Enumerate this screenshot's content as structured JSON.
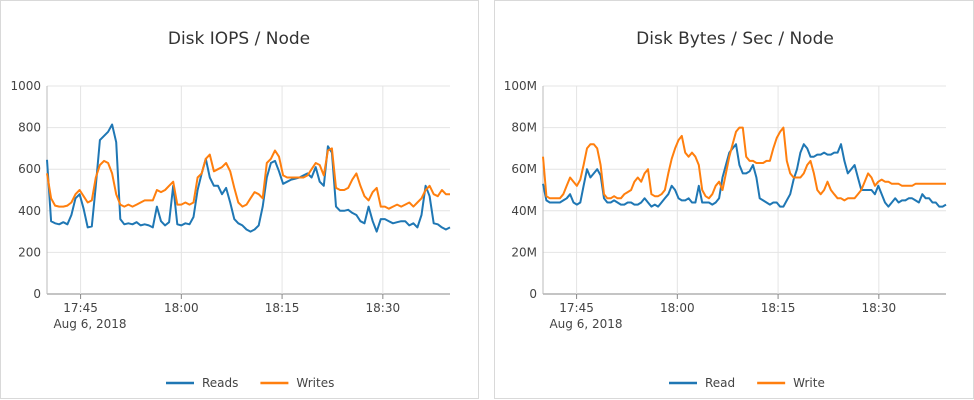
{
  "chart_data": [
    {
      "type": "line",
      "title": "Disk IOPS / Node",
      "xlabel": "",
      "ylabel": "",
      "ylim": [
        0,
        1000
      ],
      "yticks": [
        "0",
        "200",
        "400",
        "600",
        "800",
        "1000"
      ],
      "xlim": [
        0,
        60
      ],
      "xticks": [
        {
          "x": 5,
          "label": "17:45"
        },
        {
          "x": 20,
          "label": "18:00"
        },
        {
          "x": 35,
          "label": "18:15"
        },
        {
          "x": 50,
          "label": "18:30"
        }
      ],
      "x_date_label": "Aug 6, 2018",
      "grid": true,
      "legend_position": "bottom",
      "series": [
        {
          "name": "Reads",
          "color": "#1f77b4",
          "values": [
            645,
            350,
            340,
            335,
            345,
            335,
            380,
            460,
            480,
            410,
            320,
            325,
            520,
            740,
            760,
            780,
            815,
            730,
            360,
            335,
            340,
            335,
            345,
            330,
            335,
            330,
            320,
            420,
            350,
            330,
            345,
            520,
            335,
            330,
            340,
            335,
            370,
            500,
            580,
            650,
            560,
            520,
            520,
            480,
            510,
            440,
            360,
            340,
            330,
            310,
            300,
            310,
            330,
            420,
            560,
            630,
            640,
            590,
            530,
            540,
            550,
            555,
            560,
            570,
            580,
            560,
            610,
            540,
            520,
            710,
            680,
            420,
            400,
            400,
            405,
            390,
            380,
            350,
            340,
            420,
            350,
            300,
            360,
            360,
            350,
            340,
            345,
            350,
            350,
            330,
            340,
            320,
            380,
            520,
            470,
            340,
            335,
            320,
            310,
            320
          ]
        },
        {
          "name": "Writes",
          "color": "#ff7f0e",
          "values": [
            580,
            460,
            425,
            420,
            420,
            425,
            440,
            480,
            500,
            470,
            440,
            450,
            560,
            620,
            640,
            630,
            580,
            480,
            430,
            420,
            430,
            420,
            430,
            440,
            450,
            450,
            450,
            500,
            490,
            500,
            520,
            540,
            430,
            430,
            440,
            430,
            440,
            560,
            580,
            650,
            670,
            590,
            600,
            610,
            630,
            590,
            510,
            440,
            420,
            430,
            460,
            490,
            480,
            460,
            630,
            650,
            690,
            660,
            570,
            560,
            560,
            560,
            560,
            560,
            570,
            600,
            630,
            620,
            570,
            690,
            700,
            510,
            500,
            500,
            510,
            550,
            580,
            520,
            470,
            450,
            490,
            510,
            420,
            420,
            410,
            420,
            430,
            420,
            430,
            440,
            420,
            440,
            460,
            500,
            520,
            480,
            470,
            500,
            480,
            480
          ]
        }
      ]
    },
    {
      "type": "line",
      "title": "Disk Bytes / Sec / Node",
      "xlabel": "",
      "ylabel": "",
      "ylim": [
        0,
        100
      ],
      "ytick_suffix": "M",
      "yticks": [
        "0",
        "20M",
        "40M",
        "60M",
        "80M",
        "100M"
      ],
      "xlim": [
        0,
        60
      ],
      "xticks": [
        {
          "x": 5,
          "label": "17:45"
        },
        {
          "x": 20,
          "label": "18:00"
        },
        {
          "x": 35,
          "label": "18:15"
        },
        {
          "x": 50,
          "label": "18:30"
        }
      ],
      "x_date_label": "Aug 6, 2018",
      "grid": true,
      "legend_position": "bottom",
      "series": [
        {
          "name": "Read",
          "color": "#1f77b4",
          "values": [
            53,
            45,
            44,
            44,
            44,
            44,
            45,
            46,
            48,
            44,
            43,
            44,
            52,
            60,
            56,
            58,
            60,
            57,
            46,
            44,
            44,
            45,
            44,
            43,
            43,
            44,
            44,
            43,
            43,
            44,
            46,
            44,
            42,
            43,
            42,
            44,
            46,
            48,
            52,
            50,
            46,
            45,
            45,
            46,
            44,
            44,
            52,
            44,
            44,
            44,
            43,
            44,
            46,
            56,
            62,
            68,
            70,
            72,
            62,
            58,
            58,
            59,
            62,
            56,
            46,
            45,
            44,
            43,
            44,
            44,
            42,
            42,
            45,
            48,
            55,
            60,
            68,
            72,
            70,
            66,
            66,
            67,
            67,
            68,
            67,
            67,
            68,
            68,
            72,
            64,
            58,
            60,
            62,
            56,
            50,
            50,
            50,
            50,
            48,
            52,
            48,
            44,
            42,
            44,
            46,
            44,
            45,
            45,
            46,
            46,
            45,
            44,
            48,
            46,
            46,
            44,
            44,
            42,
            42,
            43
          ]
        },
        {
          "name": "Write",
          "color": "#ff7f0e",
          "values": [
            66,
            47,
            46,
            46,
            46,
            46,
            48,
            52,
            56,
            54,
            52,
            55,
            62,
            70,
            72,
            72,
            70,
            62,
            48,
            46,
            46,
            47,
            46,
            46,
            48,
            49,
            50,
            54,
            56,
            54,
            58,
            60,
            48,
            47,
            47,
            48,
            50,
            58,
            65,
            70,
            74,
            76,
            68,
            66,
            68,
            66,
            62,
            50,
            47,
            46,
            48,
            52,
            54,
            50,
            58,
            66,
            72,
            78,
            80,
            80,
            66,
            64,
            64,
            63,
            63,
            63,
            64,
            64,
            70,
            75,
            78,
            80,
            64,
            58,
            56,
            56,
            56,
            58,
            62,
            64,
            58,
            50,
            48,
            50,
            54,
            50,
            48,
            46,
            46,
            45,
            46,
            46,
            46,
            48,
            50,
            54,
            58,
            56,
            52,
            54,
            55,
            54,
            54,
            53,
            53,
            53,
            52,
            52,
            52,
            52,
            53,
            53,
            53,
            53,
            53,
            53,
            53,
            53,
            53,
            53
          ]
        }
      ]
    }
  ]
}
